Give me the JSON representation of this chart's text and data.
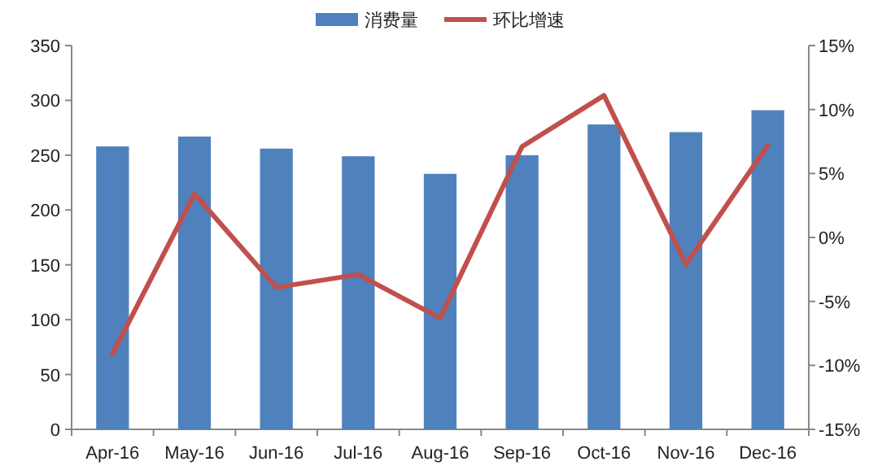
{
  "chart_data": {
    "type": "bar",
    "categories": [
      "Apr-16",
      "May-16",
      "Jun-16",
      "Jul-16",
      "Aug-16",
      "Sep-16",
      "Oct-16",
      "Nov-16",
      "Dec-16"
    ],
    "series": [
      {
        "name": "消费量",
        "color": "#4f81bd",
        "values": [
          258,
          267,
          256,
          249,
          233,
          250,
          278,
          271,
          291
        ]
      },
      {
        "name": "环比增速",
        "type": "line",
        "axis": "y2",
        "color": "#c0504d",
        "values": [
          -9.1,
          3.4,
          -3.9,
          -2.9,
          -6.3,
          7.1,
          11.1,
          -2.1,
          7.2
        ]
      }
    ],
    "ylim": [
      0,
      350
    ],
    "yticks": [
      0,
      50,
      100,
      150,
      200,
      250,
      300,
      350
    ],
    "y2lim": [
      -15,
      15
    ],
    "y2ticks": [
      {
        "value": -15,
        "label": "-15%"
      },
      {
        "value": -10,
        "label": "-10%"
      },
      {
        "value": -5,
        "label": "-5%"
      },
      {
        "value": 0,
        "label": "0%"
      },
      {
        "value": 5,
        "label": "5%"
      },
      {
        "value": 10,
        "label": "10%"
      },
      {
        "value": 15,
        "label": "15%"
      }
    ],
    "legend": "top",
    "marker": "none",
    "line_style": "solid"
  }
}
